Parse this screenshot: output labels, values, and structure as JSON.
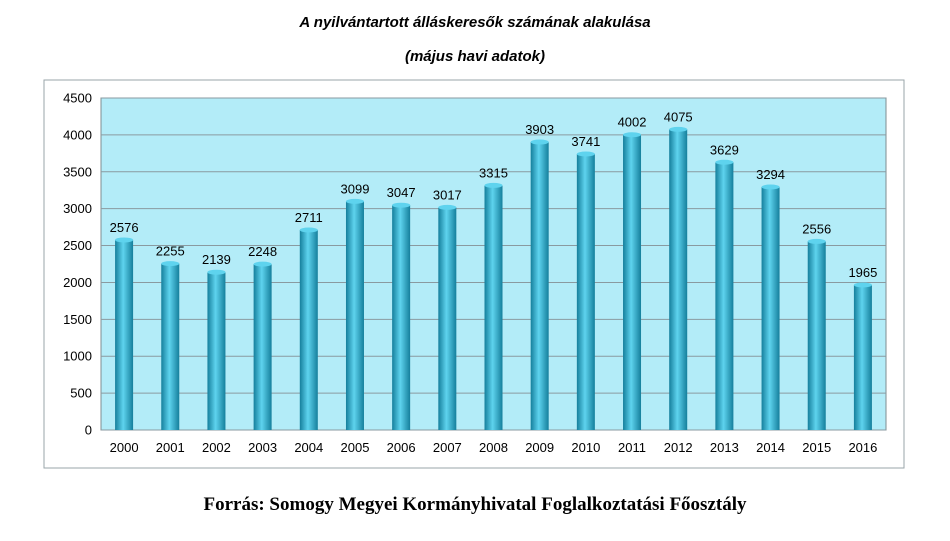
{
  "chart_data": {
    "type": "bar",
    "title": "A nyilvántartott álláskeresők számának alakulása",
    "subtitle": "(május havi adatok)",
    "xlabel": "",
    "ylabel": "",
    "categories": [
      "2000",
      "2001",
      "2002",
      "2003",
      "2004",
      "2005",
      "2006",
      "2007",
      "2008",
      "2009",
      "2010",
      "2011",
      "2012",
      "2013",
      "2014",
      "2015",
      "2016"
    ],
    "values": [
      2576,
      2255,
      2139,
      2248,
      2711,
      3099,
      3047,
      3017,
      3315,
      3903,
      3741,
      4002,
      4075,
      3629,
      3294,
      2556,
      1965
    ],
    "ylim": [
      0,
      4500
    ],
    "yticks": [
      0,
      500,
      1000,
      1500,
      2000,
      2500,
      3000,
      3500,
      4000,
      4500
    ],
    "grid": true,
    "legend": "none",
    "colors": {
      "plot_background": "#b3ecf8",
      "bar_dark": "#157f9c",
      "bar_light": "#5ed3ee",
      "gridline": "#8a9aa0"
    }
  },
  "source": "Forrás: Somogy Megyei Kormányhivatal Foglalkoztatási Főosztály"
}
